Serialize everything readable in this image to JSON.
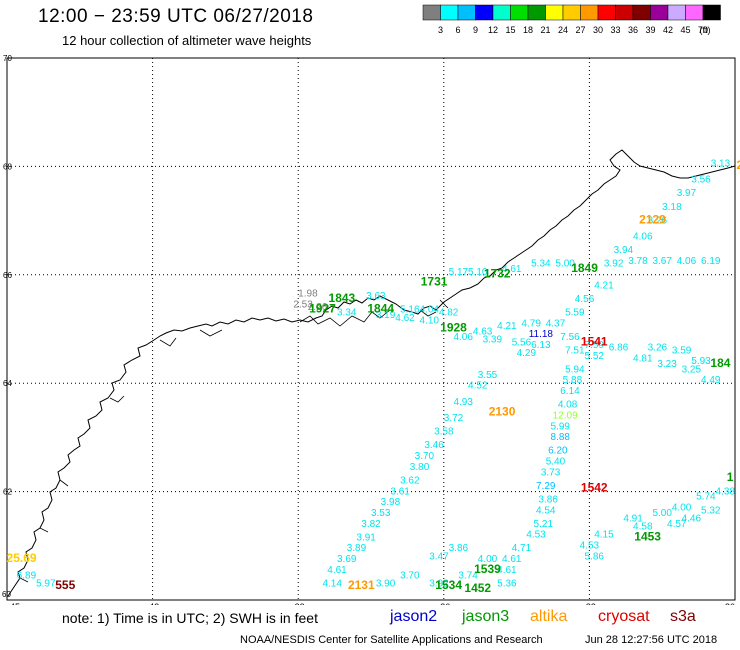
{
  "header": {
    "title": "12:00 − 23:59 UTC 06/27/2018",
    "subtitle": "12 hour collection of altimeter wave heights"
  },
  "colorbar": {
    "unit": "(ft)",
    "colors": [
      "#7f7f7f",
      "#00ffff",
      "#00bfff",
      "#0000ff",
      "#00ffcc",
      "#00e000",
      "#009900",
      "#ffff00",
      "#ffcc00",
      "#ff9900",
      "#ff0000",
      "#cc0000",
      "#800000",
      "#990099",
      "#ccaaff",
      "#ff66ff",
      "#000000"
    ],
    "labels": [
      "3",
      "6",
      "9",
      "12",
      "15",
      "18",
      "21",
      "24",
      "27",
      "30",
      "33",
      "36",
      "39",
      "42",
      "45",
      "70"
    ]
  },
  "map": {
    "lat_labels": [
      "70",
      "68",
      "66",
      "64",
      "62"
    ],
    "lon_labels": [
      "-45",
      "-42",
      "-39",
      "-36",
      "-33",
      "-30"
    ],
    "lat_tick_label_bottom": "60"
  },
  "swh_samples": [
    {
      "lon": -30.3,
      "lat": 68.0,
      "v": "3.13",
      "c": "#00e5ee"
    },
    {
      "lon": -30.7,
      "lat": 67.7,
      "v": "3.56",
      "c": "#00e5ee"
    },
    {
      "lon": -31.0,
      "lat": 67.45,
      "v": "3.97",
      "c": "#00e5ee"
    },
    {
      "lon": -31.3,
      "lat": 67.2,
      "v": "3.18",
      "c": "#00e5ee"
    },
    {
      "lon": -31.6,
      "lat": 66.95,
      "v": "3.26",
      "c": "#00e5ee"
    },
    {
      "lon": -31.9,
      "lat": 66.65,
      "v": "4.06",
      "c": "#00e5ee"
    },
    {
      "lon": -32.3,
      "lat": 66.4,
      "v": "3.94",
      "c": "#00e5ee"
    },
    {
      "lon": -32.5,
      "lat": 66.15,
      "v": "3.92",
      "c": "#00e5ee"
    },
    {
      "lon": -32.7,
      "lat": 65.75,
      "v": "4.21",
      "c": "#00e5ee"
    },
    {
      "lon": -33.1,
      "lat": 65.5,
      "v": "4.56",
      "c": "#00e5ee"
    },
    {
      "lon": -33.3,
      "lat": 65.25,
      "v": "5.59",
      "c": "#00e5ee"
    },
    {
      "lon": -33.7,
      "lat": 65.05,
      "v": "4.37",
      "c": "#00e5ee"
    },
    {
      "lon": -34.0,
      "lat": 64.85,
      "v": "11.18",
      "c": "#0000cc"
    },
    {
      "lon": -34.3,
      "lat": 64.5,
      "v": "4.29",
      "c": "#00e5ee"
    },
    {
      "lon": -35.1,
      "lat": 64.1,
      "v": "3.55",
      "c": "#00e5ee"
    },
    {
      "lon": -35.3,
      "lat": 63.9,
      "v": "4.52",
      "c": "#00e5ee"
    },
    {
      "lon": -35.6,
      "lat": 63.6,
      "v": "4.93",
      "c": "#00e5ee"
    },
    {
      "lon": -35.8,
      "lat": 63.3,
      "v": "3.72",
      "c": "#00e5ee"
    },
    {
      "lon": -36.0,
      "lat": 63.05,
      "v": "3.58",
      "c": "#00e5ee"
    },
    {
      "lon": -36.2,
      "lat": 62.8,
      "v": "3.46",
      "c": "#00e5ee"
    },
    {
      "lon": -36.4,
      "lat": 62.6,
      "v": "3.70",
      "c": "#00e5ee"
    },
    {
      "lon": -36.5,
      "lat": 62.4,
      "v": "3.80",
      "c": "#00e5ee"
    },
    {
      "lon": -36.7,
      "lat": 62.15,
      "v": "3.62",
      "c": "#00e5ee"
    },
    {
      "lon": -36.9,
      "lat": 61.95,
      "v": "3.61",
      "c": "#00e5ee"
    },
    {
      "lon": -37.1,
      "lat": 61.75,
      "v": "3.98",
      "c": "#00e5ee"
    },
    {
      "lon": -37.3,
      "lat": 61.55,
      "v": "3.53",
      "c": "#00e5ee"
    },
    {
      "lon": -37.5,
      "lat": 61.35,
      "v": "3.82",
      "c": "#00e5ee"
    },
    {
      "lon": -37.6,
      "lat": 61.1,
      "v": "3.91",
      "c": "#00e5ee"
    },
    {
      "lon": -37.8,
      "lat": 60.9,
      "v": "3.89",
      "c": "#00e5ee"
    },
    {
      "lon": -38.0,
      "lat": 60.7,
      "v": "3.69",
      "c": "#00e5ee"
    },
    {
      "lon": -38.2,
      "lat": 60.5,
      "v": "4.61",
      "c": "#00e5ee"
    },
    {
      "lon": -38.3,
      "lat": 60.25,
      "v": "4.14",
      "c": "#00e5ee"
    },
    {
      "lon": -33.3,
      "lat": 64.2,
      "v": "5.94",
      "c": "#00e5ee"
    },
    {
      "lon": -33.35,
      "lat": 64.0,
      "v": "5.88",
      "c": "#00e5ee"
    },
    {
      "lon": -33.4,
      "lat": 63.8,
      "v": "6.14",
      "c": "#00e5ee"
    },
    {
      "lon": -33.45,
      "lat": 63.55,
      "v": "4.08",
      "c": "#00e5ee"
    },
    {
      "lon": -33.5,
      "lat": 63.35,
      "v": "12.09",
      "c": "#99ff33"
    },
    {
      "lon": -33.6,
      "lat": 63.15,
      "v": "5.99",
      "c": "#00e5ee"
    },
    {
      "lon": -33.6,
      "lat": 62.95,
      "v": "8.88",
      "c": "#00bfff"
    },
    {
      "lon": -33.65,
      "lat": 62.7,
      "v": "6.20",
      "c": "#00bfff"
    },
    {
      "lon": -33.7,
      "lat": 62.5,
      "v": "5.40",
      "c": "#00e5ee"
    },
    {
      "lon": -33.8,
      "lat": 62.3,
      "v": "3.73",
      "c": "#00e5ee"
    },
    {
      "lon": -33.9,
      "lat": 62.05,
      "v": "7.29",
      "c": "#00bfff"
    },
    {
      "lon": -33.85,
      "lat": 61.8,
      "v": "3.86",
      "c": "#00e5ee"
    },
    {
      "lon": -33.9,
      "lat": 61.6,
      "v": "4.54",
      "c": "#00e5ee"
    },
    {
      "lon": -33.95,
      "lat": 61.35,
      "v": "5.21",
      "c": "#00e5ee"
    },
    {
      "lon": -34.1,
      "lat": 61.15,
      "v": "4.53",
      "c": "#00e5ee"
    },
    {
      "lon": -34.4,
      "lat": 60.9,
      "v": "4.71",
      "c": "#00e5ee"
    },
    {
      "lon": -34.6,
      "lat": 60.7,
      "v": "4.61",
      "c": "#00e5ee"
    },
    {
      "lon": -34.7,
      "lat": 60.5,
      "v": "4.61",
      "c": "#00e5ee"
    },
    {
      "lon": -34.7,
      "lat": 60.25,
      "v": "5.36",
      "c": "#00e5ee"
    },
    {
      "lon": -35.5,
      "lat": 60.4,
      "v": "3.74",
      "c": "#00e5ee"
    },
    {
      "lon": -35.1,
      "lat": 60.7,
      "v": "4.00",
      "c": "#00e5ee"
    },
    {
      "lon": -35.7,
      "lat": 60.9,
      "v": "3.86",
      "c": "#00e5ee"
    },
    {
      "lon": -36.1,
      "lat": 60.75,
      "v": "3.47",
      "c": "#00e5ee"
    },
    {
      "lon": -36.7,
      "lat": 60.4,
      "v": "3.70",
      "c": "#00e5ee"
    },
    {
      "lon": -37.2,
      "lat": 60.25,
      "v": "3.90",
      "c": "#00e5ee"
    },
    {
      "lon": -36.1,
      "lat": 60.25,
      "v": "3.92",
      "c": "#00e5ee"
    },
    {
      "lon": -32.1,
      "lat": 61.45,
      "v": "4.91",
      "c": "#00e5ee"
    },
    {
      "lon": -31.5,
      "lat": 61.55,
      "v": "5.00",
      "c": "#00e5ee"
    },
    {
      "lon": -31.1,
      "lat": 61.65,
      "v": "4.00",
      "c": "#00e5ee"
    },
    {
      "lon": -31.9,
      "lat": 61.3,
      "v": "4.58",
      "c": "#00e5ee"
    },
    {
      "lon": -31.2,
      "lat": 61.35,
      "v": "4.57",
      "c": "#00e5ee"
    },
    {
      "lon": -30.9,
      "lat": 61.45,
      "v": "4.46",
      "c": "#00e5ee"
    },
    {
      "lon": -30.5,
      "lat": 61.6,
      "v": "5.32",
      "c": "#00e5ee"
    },
    {
      "lon": -30.6,
      "lat": 61.85,
      "v": "5.74",
      "c": "#00e5ee"
    },
    {
      "lon": -30.2,
      "lat": 61.95,
      "v": "4.38",
      "c": "#00e5ee"
    },
    {
      "lon": -32.7,
      "lat": 61.15,
      "v": "4.15",
      "c": "#00e5ee"
    },
    {
      "lon": -33.0,
      "lat": 60.95,
      "v": "4.53",
      "c": "#00e5ee"
    },
    {
      "lon": -32.9,
      "lat": 60.75,
      "v": "5.86",
      "c": "#00e5ee"
    },
    {
      "lon": -32.4,
      "lat": 64.6,
      "v": "6.86",
      "c": "#00e5ee"
    },
    {
      "lon": -31.9,
      "lat": 64.4,
      "v": "4.81",
      "c": "#00e5ee"
    },
    {
      "lon": -31.4,
      "lat": 64.3,
      "v": "3.23",
      "c": "#00e5ee"
    },
    {
      "lon": -30.9,
      "lat": 64.2,
      "v": "3.25",
      "c": "#00e5ee"
    },
    {
      "lon": -30.5,
      "lat": 64.0,
      "v": "4.49",
      "c": "#00e5ee"
    },
    {
      "lon": -31.6,
      "lat": 64.6,
      "v": "3.26",
      "c": "#00e5ee"
    },
    {
      "lon": -31.1,
      "lat": 64.55,
      "v": "3.59",
      "c": "#00e5ee"
    },
    {
      "lon": -30.7,
      "lat": 64.35,
      "v": "5.93",
      "c": "#00e5ee"
    },
    {
      "lon": -32.9,
      "lat": 64.65,
      "v": "7.59",
      "c": "#00e5ee"
    },
    {
      "lon": -33.4,
      "lat": 64.8,
      "v": "7.56",
      "c": "#00e5ee"
    },
    {
      "lon": -33.3,
      "lat": 64.55,
      "v": "7.51",
      "c": "#00e5ee"
    },
    {
      "lon": -32.9,
      "lat": 64.45,
      "v": "5.52",
      "c": "#00e5ee"
    },
    {
      "lon": -34.2,
      "lat": 65.05,
      "v": "4.79",
      "c": "#00e5ee"
    },
    {
      "lon": -34.7,
      "lat": 65.0,
      "v": "4.21",
      "c": "#00e5ee"
    },
    {
      "lon": -35.2,
      "lat": 64.9,
      "v": "4.63",
      "c": "#00e5ee"
    },
    {
      "lon": -35.6,
      "lat": 64.8,
      "v": "4.06",
      "c": "#00e5ee"
    },
    {
      "lon": -35.0,
      "lat": 64.75,
      "v": "3.39",
      "c": "#00e5ee"
    },
    {
      "lon": -34.4,
      "lat": 64.7,
      "v": "5.56",
      "c": "#00e5ee"
    },
    {
      "lon": -34.0,
      "lat": 64.65,
      "v": "6.13",
      "c": "#00e5ee"
    },
    {
      "lon": -38.9,
      "lat": 65.4,
      "v": "2.53",
      "c": "#7f7f7f"
    },
    {
      "lon": -38.6,
      "lat": 65.35,
      "v": "2.26",
      "c": "#7f7f7f"
    },
    {
      "lon": -38.8,
      "lat": 65.6,
      "v": "1.98",
      "c": "#7f7f7f"
    },
    {
      "lon": -38.0,
      "lat": 65.25,
      "v": "3.34",
      "c": "#00e5ee"
    },
    {
      "lon": -37.2,
      "lat": 65.2,
      "v": "3.19",
      "c": "#00e5ee"
    },
    {
      "lon": -36.8,
      "lat": 65.15,
      "v": "4.62",
      "c": "#00e5ee"
    },
    {
      "lon": -36.3,
      "lat": 65.1,
      "v": "4.10",
      "c": "#00e5ee"
    },
    {
      "lon": -37.4,
      "lat": 65.55,
      "v": "3.63",
      "c": "#00e5ee"
    },
    {
      "lon": -36.7,
      "lat": 65.3,
      "v": "5.16",
      "c": "#00e5ee"
    },
    {
      "lon": -36.3,
      "lat": 65.3,
      "v": "4.04",
      "c": "#00e5ee"
    },
    {
      "lon": -35.9,
      "lat": 65.25,
      "v": "4.82",
      "c": "#00e5ee"
    },
    {
      "lon": -35.7,
      "lat": 66.0,
      "v": "5.17",
      "c": "#00e5ee"
    },
    {
      "lon": -35.3,
      "lat": 66.0,
      "v": "5.10",
      "c": "#00e5ee"
    },
    {
      "lon": -34.6,
      "lat": 66.05,
      "v": "4.61",
      "c": "#00e5ee"
    },
    {
      "lon": -34.0,
      "lat": 66.15,
      "v": "5.34",
      "c": "#00e5ee"
    },
    {
      "lon": -33.5,
      "lat": 66.15,
      "v": "5.00",
      "c": "#00e5ee"
    },
    {
      "lon": -32.0,
      "lat": 66.2,
      "v": "3.78",
      "c": "#00e5ee"
    },
    {
      "lon": -31.5,
      "lat": 66.2,
      "v": "3.67",
      "c": "#00e5ee"
    },
    {
      "lon": -31.0,
      "lat": 66.2,
      "v": "4.06",
      "c": "#00e5ee"
    },
    {
      "lon": -30.5,
      "lat": 66.2,
      "v": "6.19",
      "c": "#00e5ee"
    },
    {
      "lon": -44.6,
      "lat": 60.4,
      "v": "6.89",
      "c": "#00e5ee"
    },
    {
      "lon": -44.2,
      "lat": 60.25,
      "v": "5.97",
      "c": "#00e5ee"
    }
  ],
  "time_labels": [
    {
      "lon": -29.9,
      "lat": 67.95,
      "t": "2",
      "c": "#ff9900"
    },
    {
      "lon": -31.7,
      "lat": 66.95,
      "t": "2129",
      "c": "#ff9900"
    },
    {
      "lon": -33.1,
      "lat": 66.05,
      "t": "1849",
      "c": "#009900"
    },
    {
      "lon": -34.9,
      "lat": 65.95,
      "t": "1732",
      "c": "#009900"
    },
    {
      "lon": -36.2,
      "lat": 65.8,
      "t": "1731",
      "c": "#009900"
    },
    {
      "lon": -38.1,
      "lat": 65.5,
      "t": "1843",
      "c": "#009900"
    },
    {
      "lon": -38.5,
      "lat": 65.3,
      "t": "1927",
      "c": "#009900"
    },
    {
      "lon": -37.3,
      "lat": 65.3,
      "t": "1844",
      "c": "#009900"
    },
    {
      "lon": -35.8,
      "lat": 64.95,
      "t": "1928",
      "c": "#009900"
    },
    {
      "lon": -32.9,
      "lat": 64.7,
      "t": "1541",
      "c": "#dd0000"
    },
    {
      "lon": -30.3,
      "lat": 64.3,
      "t": "184",
      "c": "#009900"
    },
    {
      "lon": -34.8,
      "lat": 63.4,
      "t": "2130",
      "c": "#ff9900"
    },
    {
      "lon": -32.9,
      "lat": 62.0,
      "t": "1542",
      "c": "#dd0000"
    },
    {
      "lon": -30.1,
      "lat": 62.2,
      "t": "1",
      "c": "#009900"
    },
    {
      "lon": -31.8,
      "lat": 61.1,
      "t": "1453",
      "c": "#009900"
    },
    {
      "lon": -35.1,
      "lat": 60.5,
      "t": "1539",
      "c": "#009900"
    },
    {
      "lon": -35.9,
      "lat": 60.2,
      "t": "1534",
      "c": "#009900"
    },
    {
      "lon": -35.3,
      "lat": 60.15,
      "t": "1452",
      "c": "#009900"
    },
    {
      "lon": -37.7,
      "lat": 60.2,
      "t": "2131",
      "c": "#ff9900"
    },
    {
      "lon": -44.7,
      "lat": 60.7,
      "t": "25.69",
      "c": "#ffcc00"
    },
    {
      "lon": -43.8,
      "lat": 60.2,
      "t": "555",
      "c": "#800000"
    }
  ],
  "legend": {
    "note": "note:  1) Time is in UTC;  2) SWH is in feet",
    "satellites": [
      {
        "name": "jason2",
        "color": "#0000cc"
      },
      {
        "name": "jason3",
        "color": "#009900"
      },
      {
        "name": "altika",
        "color": "#ff9900"
      },
      {
        "name": "cryosat",
        "color": "#dd0000"
      },
      {
        "name": "s3a",
        "color": "#800000"
      }
    ]
  },
  "footer": {
    "left": "NOAA/NESDIS Center for Satellite Applications and Research",
    "right": "Jun 28 12:27:56 UTC 2018"
  }
}
